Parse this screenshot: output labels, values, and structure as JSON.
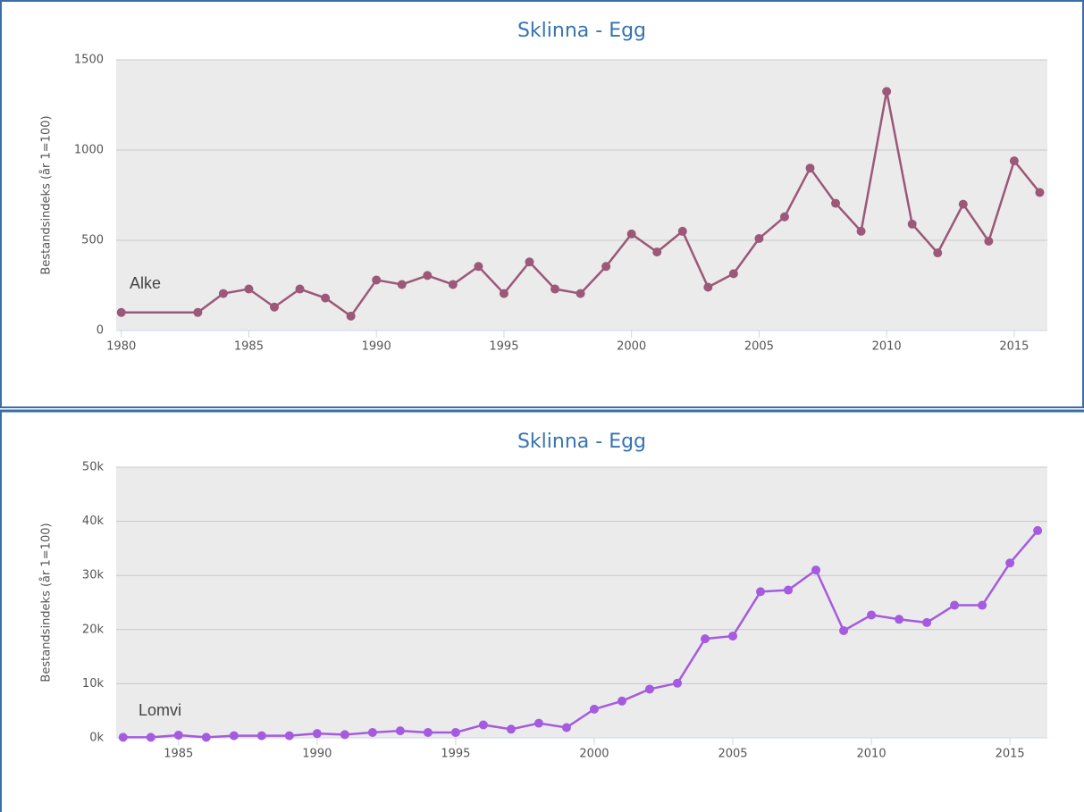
{
  "chart_data": [
    {
      "type": "line",
      "title": "Sklinna - Egg",
      "y_label": "Bestandsindeks (år 1=100)",
      "annotation": "Alke",
      "x": [
        1980,
        1983,
        1984,
        1985,
        1986,
        1987,
        1988,
        1989,
        1990,
        1991,
        1992,
        1993,
        1994,
        1995,
        1996,
        1997,
        1998,
        1999,
        2000,
        2001,
        2002,
        2003,
        2004,
        2005,
        2006,
        2007,
        2008,
        2009,
        2010,
        2011,
        2012,
        2013,
        2014,
        2015,
        2016
      ],
      "series": [
        {
          "name": "Alke",
          "color": "#9b5878",
          "values": [
            100,
            100,
            205,
            230,
            130,
            230,
            180,
            80,
            280,
            255,
            305,
            255,
            355,
            205,
            380,
            230,
            205,
            355,
            535,
            435,
            550,
            240,
            315,
            510,
            630,
            900,
            705,
            550,
            1325,
            590,
            430,
            700,
            495,
            940,
            765
          ]
        }
      ],
      "xlim": [
        1979.8,
        2016.3
      ],
      "xticks": [
        1980,
        1985,
        1990,
        1995,
        2000,
        2005,
        2010,
        2015
      ],
      "ylim": [
        0,
        1500
      ],
      "yticks": [
        0,
        500,
        1000,
        1500
      ],
      "grid": true
    },
    {
      "type": "line",
      "title": "Sklinna - Egg",
      "y_label": "Bestandsindeks (år 1=100)",
      "annotation": "Lomvi",
      "x": [
        1983,
        1984,
        1985,
        1986,
        1987,
        1988,
        1989,
        1990,
        1991,
        1992,
        1993,
        1994,
        1995,
        1996,
        1997,
        1998,
        1999,
        2000,
        2001,
        2002,
        2003,
        2004,
        2005,
        2006,
        2007,
        2008,
        2009,
        2010,
        2011,
        2012,
        2013,
        2014,
        2015,
        2016
      ],
      "series": [
        {
          "name": "Lomvi",
          "color": "#a55be0",
          "values": [
            100,
            100,
            500,
            100,
            400,
            400,
            400,
            800,
            600,
            1000,
            1300,
            1000,
            1000,
            2400,
            1600,
            2700,
            1900,
            5300,
            6800,
            9000,
            10100,
            18300,
            18800,
            27000,
            27300,
            31000,
            19800,
            22700,
            21900,
            21300,
            24500,
            24500,
            32300,
            38300
          ]
        }
      ],
      "xlim": [
        1982.75,
        2016.35
      ],
      "xticks": [
        1985,
        1990,
        1995,
        2000,
        2005,
        2010,
        2015
      ],
      "ylim": [
        0,
        50000
      ],
      "yticks": [
        {
          "value": 0,
          "label": "0k"
        },
        {
          "value": 10000,
          "label": "10k"
        },
        {
          "value": 20000,
          "label": "20k"
        },
        {
          "value": 30000,
          "label": "30k"
        },
        {
          "value": 40000,
          "label": "40k"
        },
        {
          "value": 50000,
          "label": "50k"
        }
      ],
      "grid": true
    }
  ]
}
